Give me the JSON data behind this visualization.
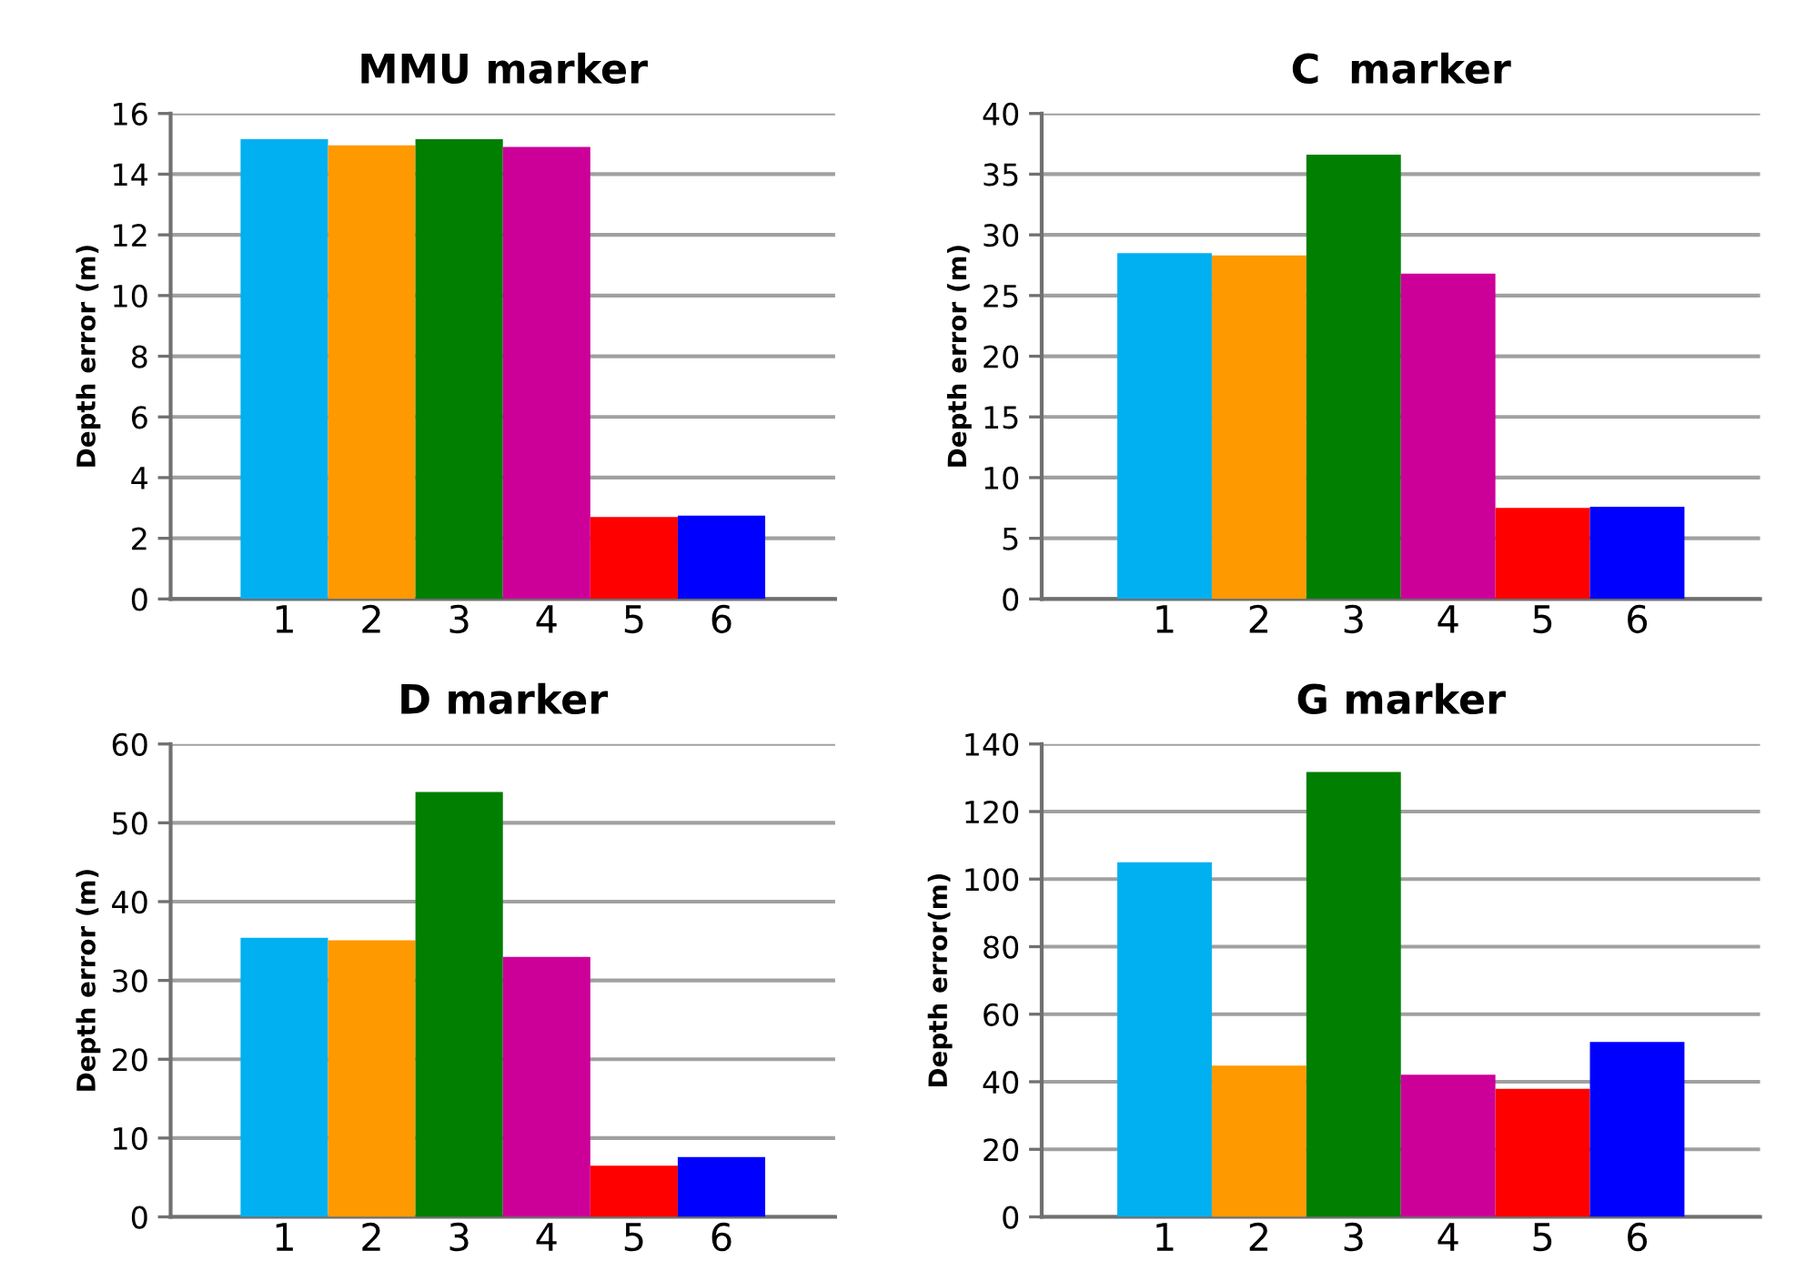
{
  "chart_data": [
    {
      "type": "bar",
      "title": "MMU marker",
      "ylabel": "Depth error (m)",
      "categories": [
        "1",
        "2",
        "3",
        "4",
        "5",
        "6"
      ],
      "values": [
        15.15,
        14.95,
        15.15,
        14.9,
        2.7,
        2.75
      ],
      "colors": [
        "#00b0f0",
        "#ff9900",
        "#007f00",
        "#cc0099",
        "#ff0000",
        "#0000ff"
      ],
      "ylim": [
        0,
        16
      ],
      "yticks": [
        0,
        2,
        4,
        6,
        8,
        10,
        12,
        14,
        16
      ],
      "grid": "y",
      "legend": false
    },
    {
      "type": "bar",
      "title": "C  marker",
      "ylabel": "Depth error (m)",
      "categories": [
        "1",
        "2",
        "3",
        "4",
        "5",
        "6"
      ],
      "values": [
        28.5,
        28.3,
        36.6,
        26.8,
        7.5,
        7.6
      ],
      "colors": [
        "#00b0f0",
        "#ff9900",
        "#007f00",
        "#cc0099",
        "#ff0000",
        "#0000ff"
      ],
      "ylim": [
        0,
        40
      ],
      "yticks": [
        0,
        5,
        10,
        15,
        20,
        25,
        30,
        35,
        40
      ],
      "grid": "y",
      "legend": false
    },
    {
      "type": "bar",
      "title": "D marker",
      "ylabel": "Depth error (m)",
      "categories": [
        "1",
        "2",
        "3",
        "4",
        "5",
        "6"
      ],
      "values": [
        35.4,
        35.1,
        53.9,
        33.0,
        6.5,
        7.6
      ],
      "colors": [
        "#00b0f0",
        "#ff9900",
        "#007f00",
        "#cc0099",
        "#ff0000",
        "#0000ff"
      ],
      "ylim": [
        0,
        60
      ],
      "yticks": [
        0,
        10,
        20,
        30,
        40,
        50,
        60
      ],
      "grid": "y",
      "legend": false
    },
    {
      "type": "bar",
      "title": "G marker",
      "ylabel": "Depth error(m)",
      "categories": [
        "1",
        "2",
        "3",
        "4",
        "5",
        "6"
      ],
      "values": [
        105,
        44.8,
        131.7,
        42.1,
        37.9,
        51.8
      ],
      "colors": [
        "#00b0f0",
        "#ff9900",
        "#007f00",
        "#cc0099",
        "#ff0000",
        "#0000ff"
      ],
      "ylim": [
        0,
        140
      ],
      "yticks": [
        0,
        20,
        40,
        60,
        80,
        100,
        120,
        140
      ],
      "grid": "y",
      "legend": false
    }
  ]
}
